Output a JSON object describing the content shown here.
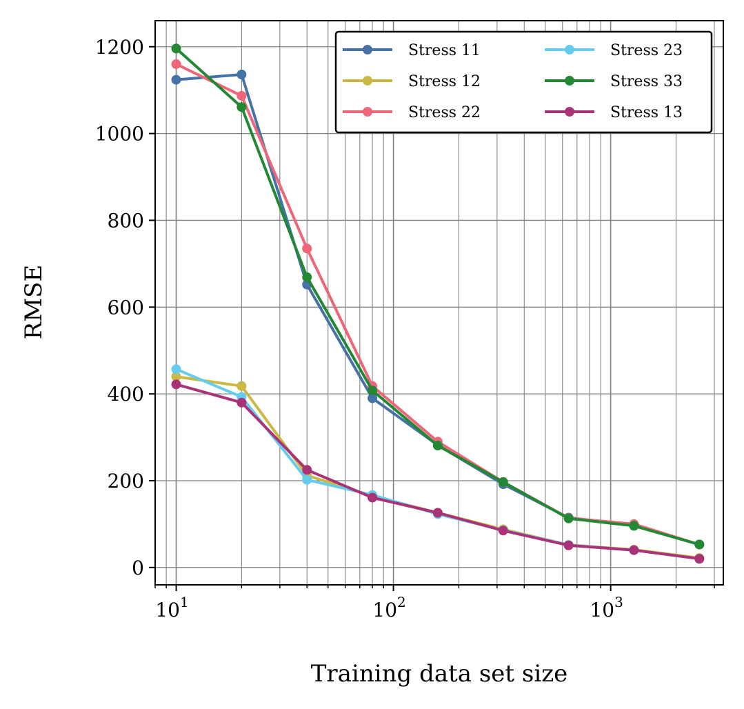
{
  "chart_data": {
    "type": "line",
    "xlabel": "Training data set size",
    "ylabel": "RMSE",
    "x_scale": "log",
    "xlim": [
      8,
      3300
    ],
    "ylim": [
      -40,
      1260
    ],
    "x_ticks": [
      {
        "value": 10,
        "base": "10",
        "exp": "1"
      },
      {
        "value": 100,
        "base": "10",
        "exp": "2"
      },
      {
        "value": 1000,
        "base": "10",
        "exp": "3"
      }
    ],
    "y_ticks": [
      {
        "value": 0,
        "label": "0"
      },
      {
        "value": 200,
        "label": "200"
      },
      {
        "value": 400,
        "label": "400"
      },
      {
        "value": 600,
        "label": "600"
      },
      {
        "value": 800,
        "label": "800"
      },
      {
        "value": 1000,
        "label": "1000"
      },
      {
        "value": 1200,
        "label": "1200"
      }
    ],
    "grid": "major-and-minor",
    "legend_position": "top-right",
    "legend_columns": 2,
    "x": [
      10,
      20,
      40,
      80,
      160,
      320,
      640,
      1280,
      2560
    ],
    "series": [
      {
        "name": "Stress 11",
        "color": "#4573a7",
        "values": [
          1124,
          1136,
          652,
          390,
          282,
          192,
          115,
          97,
          53
        ]
      },
      {
        "name": "Stress 12",
        "color": "#cbb944",
        "values": [
          440,
          418,
          212,
          165,
          126,
          88,
          52,
          41,
          22
        ]
      },
      {
        "name": "Stress 22",
        "color": "#ee6677",
        "values": [
          1160,
          1087,
          735,
          418,
          290,
          197,
          114,
          100,
          53
        ]
      },
      {
        "name": "Stress 23",
        "color": "#66ccee",
        "values": [
          457,
          393,
          202,
          167,
          123,
          86,
          52,
          40,
          20
        ]
      },
      {
        "name": "Stress 33",
        "color": "#228833",
        "values": [
          1196,
          1061,
          669,
          408,
          281,
          197,
          113,
          96,
          53
        ]
      },
      {
        "name": "Stress 13",
        "color": "#aa3377",
        "values": [
          422,
          380,
          225,
          161,
          126,
          85,
          51,
          40,
          20
        ]
      }
    ]
  }
}
